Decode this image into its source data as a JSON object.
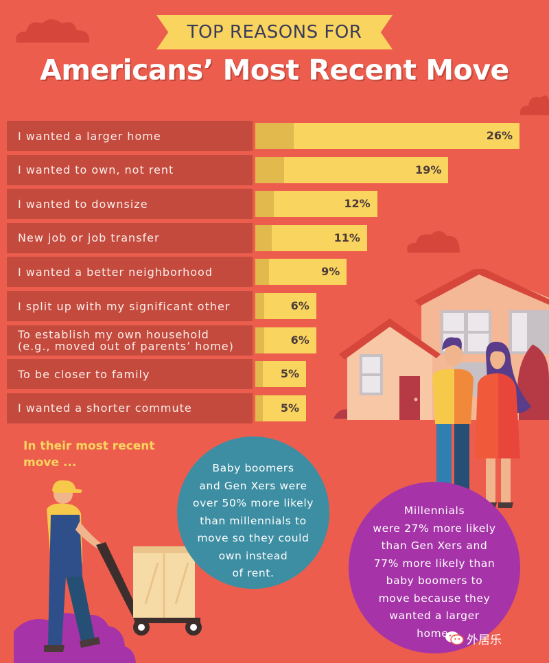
{
  "banner": {
    "text": "TOP REASONS FOR"
  },
  "title": "Americans’ Most Recent Move",
  "chart_data": {
    "type": "bar",
    "orientation": "horizontal",
    "categories": [
      "I wanted a larger home",
      "I wanted to own, not rent",
      "I wanted to downsize",
      "New job or job transfer",
      "I wanted a better neighborhood",
      "I split up with my significant other",
      "To establish my own household\n(e.g., moved out of parents’ home)",
      "To be closer to family",
      "I wanted a shorter commute"
    ],
    "values": [
      26,
      19,
      12,
      11,
      9,
      6,
      6,
      5,
      5
    ],
    "value_labels": [
      "26%",
      "19%",
      "12%",
      "11%",
      "9%",
      "6%",
      "6%",
      "5%",
      "5%"
    ],
    "unit": "%",
    "title": "TOP REASONS FOR Americans’ Most Recent Move"
  },
  "subhead": "In their most recent\nmove ...",
  "callouts": {
    "boomers": "Baby boomers\nand Gen Xers were\nover 50% more likely\nthan millennials to\nmove so they could\nown instead\nof rent.",
    "millennials": "Millennials\nwere 27% more likely\nthan Gen Xers and\n77% more likely than\nbaby boomers to\nmove because they\nwanted a larger\nhome."
  },
  "watermark": "外居乐",
  "icons": {
    "watermark": "wechat-icon",
    "illustration": "house-icon"
  },
  "colors": {
    "background": "#ec5d4e",
    "bar": "#f9d45e",
    "label_bg": "#c44a3e",
    "blue_circle": "#3e8ea3",
    "purple_circle": "#a634a8"
  }
}
